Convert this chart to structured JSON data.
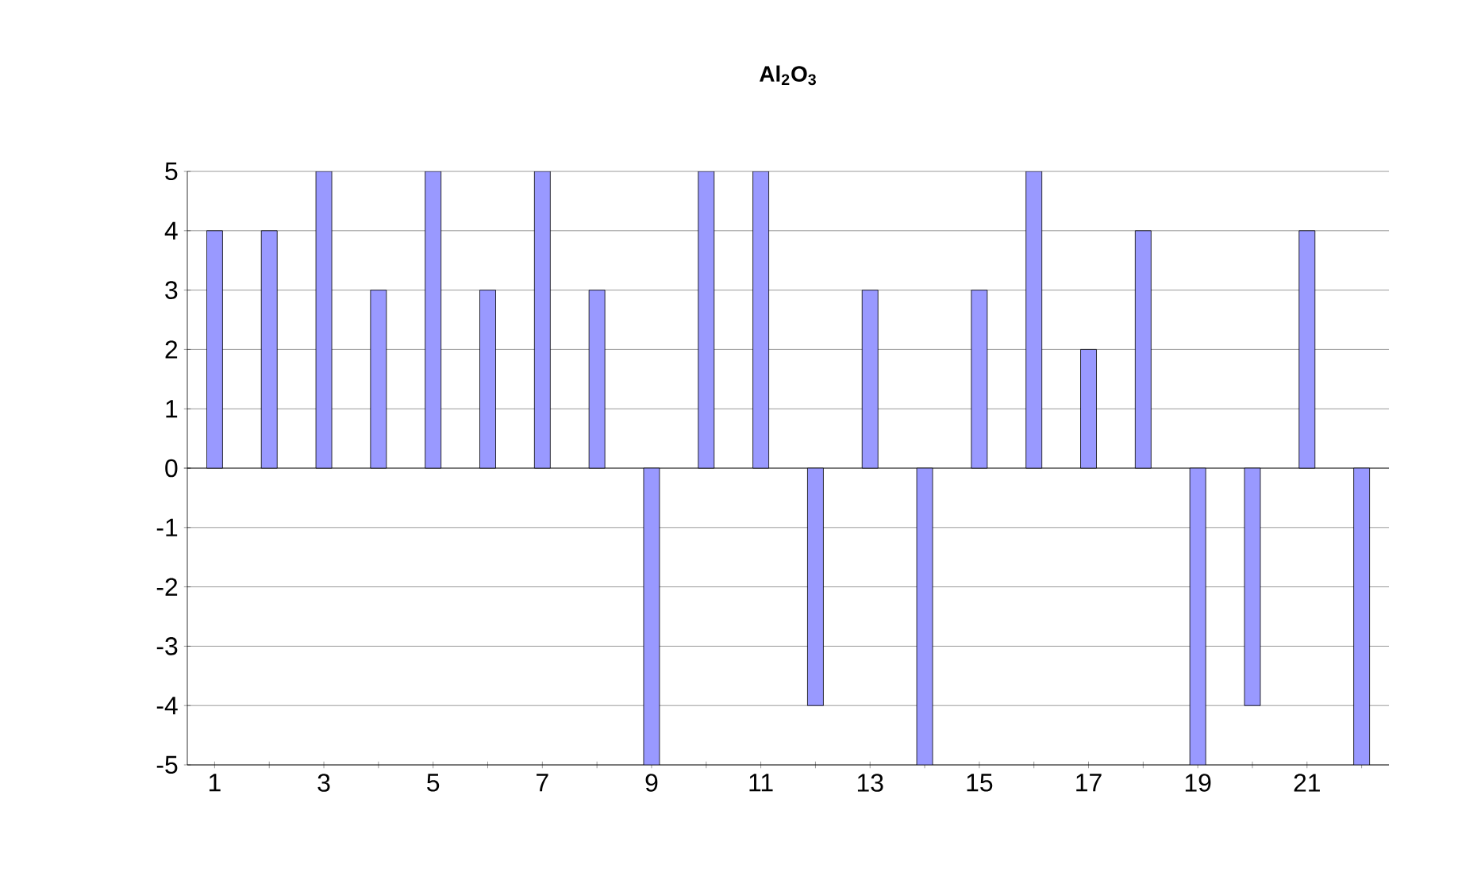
{
  "chart_data": {
    "type": "bar",
    "title": "Al$_{2}$O$_{3}$",
    "categories": [
      "1",
      null,
      "3",
      null,
      "5",
      null,
      "7",
      null,
      "9",
      null,
      "11",
      null,
      "13",
      null,
      "15",
      null,
      "17",
      null,
      "19",
      null,
      "21",
      null
    ],
    "values": [
      4,
      4,
      5,
      3,
      5,
      3,
      5,
      3,
      -5,
      5,
      5,
      -4,
      3,
      -5,
      3,
      5,
      2,
      4,
      -5,
      -4,
      4,
      -5
    ],
    "color": "#9999ff",
    "ylim": [
      -5,
      5
    ],
    "yticks": [
      -5,
      -4,
      -3,
      -2,
      -1,
      0,
      1,
      2,
      3,
      4,
      5
    ],
    "grid": "y"
  }
}
